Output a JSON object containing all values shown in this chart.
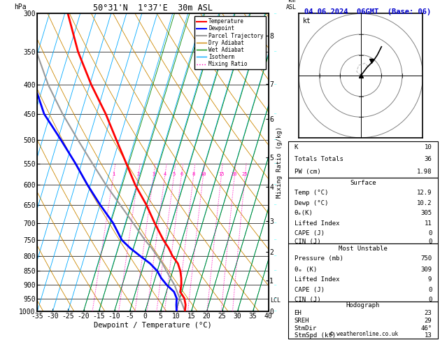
{
  "title": "50°31'N  1°37'E  30m ASL",
  "date_label": "04.06.2024  06GMT  (Base: 06)",
  "xlabel": "Dewpoint / Temperature (°C)",
  "ylabel_left": "hPa",
  "ylabel_right": "Mixing Ratio (g/kg)",
  "pressure_levels": [
    300,
    350,
    400,
    450,
    500,
    550,
    600,
    650,
    700,
    750,
    800,
    850,
    900,
    950,
    1000
  ],
  "temp_xlim": [
    -35,
    40
  ],
  "temp_color": "#ff0000",
  "dewp_color": "#0000ff",
  "parcel_color": "#999999",
  "dry_adiabat_color": "#cc8800",
  "wet_adiabat_color": "#008800",
  "isotherm_color": "#00aaff",
  "mixing_ratio_color": "#ff00bb",
  "temperature_profile": {
    "pressure": [
      1000,
      975,
      950,
      925,
      900,
      875,
      850,
      825,
      800,
      775,
      750,
      700,
      650,
      600,
      550,
      500,
      450,
      400,
      350,
      300
    ],
    "temp": [
      12.9,
      12.5,
      11.5,
      9.5,
      9.2,
      8.5,
      7.5,
      6.0,
      3.5,
      1.5,
      -1.0,
      -5.5,
      -10.0,
      -15.5,
      -20.5,
      -26.0,
      -32.0,
      -39.5,
      -47.0,
      -54.0
    ]
  },
  "dewpoint_profile": {
    "pressure": [
      1000,
      975,
      950,
      925,
      900,
      875,
      850,
      825,
      800,
      775,
      750,
      700,
      650,
      600,
      550,
      500,
      450,
      400,
      350,
      300
    ],
    "dewp": [
      10.2,
      9.5,
      9.0,
      7.5,
      4.5,
      2.0,
      0.0,
      -3.0,
      -7.0,
      -11.0,
      -14.5,
      -19.0,
      -25.0,
      -31.0,
      -37.0,
      -44.0,
      -52.0,
      -58.0,
      -62.0,
      -66.0
    ]
  },
  "parcel_profile": {
    "pressure": [
      1000,
      975,
      950,
      925,
      900,
      875,
      850,
      825,
      800,
      775,
      750,
      700,
      650,
      600,
      550,
      500,
      450,
      400,
      350,
      300
    ],
    "temp": [
      12.9,
      11.5,
      10.0,
      8.5,
      7.0,
      5.0,
      3.0,
      1.0,
      -1.5,
      -4.0,
      -7.0,
      -12.5,
      -18.5,
      -25.0,
      -31.5,
      -38.5,
      -46.0,
      -53.5,
      -60.5,
      -66.0
    ]
  },
  "lcl_pressure": 958,
  "mixing_ratio_vals": [
    1,
    2,
    3,
    4,
    5,
    6,
    8,
    10,
    15,
    20,
    25
  ],
  "km_asl_pressures": [
    1013,
    895,
    795,
    700,
    609,
    540,
    462,
    400,
    328
  ],
  "km_asl_values": [
    0,
    1,
    2,
    3,
    4,
    5,
    6,
    7,
    8
  ],
  "stats": {
    "K": 10,
    "TotTot": 36,
    "PW_cm": 1.98,
    "surf_temp": 12.9,
    "surf_dewp": 10.2,
    "surf_theta_e": 305,
    "surf_lifted_index": 11,
    "surf_CAPE": 0,
    "surf_CIN": 0,
    "mu_pressure": 750,
    "mu_theta_e": 309,
    "mu_lifted_index": 9,
    "mu_CAPE": 0,
    "mu_CIN": 0,
    "EH": 23,
    "SREH": 29,
    "StmDir": 46,
    "StmSpd": 13
  }
}
